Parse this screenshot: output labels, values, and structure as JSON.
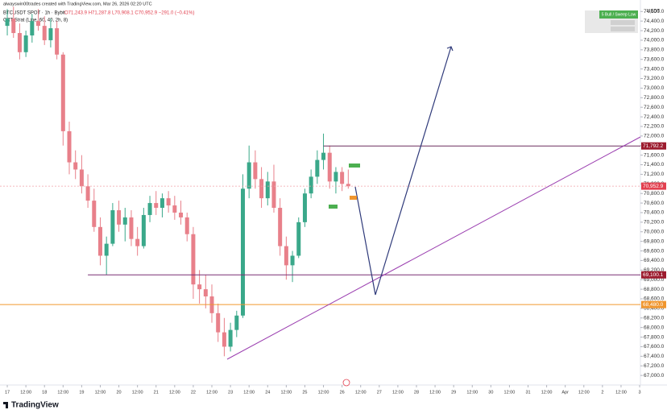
{
  "header": {
    "credit": "alwayswin00trades created with TradingView.com, Mar 26, 2026 02:20 UTC",
    "symbol": "BTCUSDT SPOT · 1h · Bybit",
    "ohlc": "O71,243.9 H71,287.8 L70,908.1 C70,952.9 −291.0 (−0.41%)",
    "indicator": "CRT Strat (Line, 60, 40, 2h, 8)"
  },
  "panel": {
    "title": "5 Bull / Sweep Low"
  },
  "footer": {
    "brand": "TradingView"
  },
  "chart_data": {
    "type": "candlestick",
    "y_unit": "USDT",
    "x": [
      0,
      4,
      8,
      12,
      16,
      20,
      24,
      28,
      32,
      36,
      40,
      44,
      48,
      52,
      56,
      60,
      64,
      68,
      72,
      76,
      80,
      84,
      88,
      92,
      96,
      100,
      104,
      108,
      112,
      116,
      120,
      124,
      128,
      132,
      136,
      140,
      144,
      148,
      152,
      156,
      160,
      164,
      168,
      172,
      176,
      180,
      184,
      188,
      192,
      196,
      200,
      204,
      208,
      212,
      216,
      220
    ],
    "open": [
      74300,
      74450,
      74150,
      73750,
      74100,
      74400,
      74300,
      74000,
      74250,
      73700,
      72100,
      71450,
      71300,
      70950,
      70650,
      70100,
      69500,
      69750,
      70450,
      70150,
      70300,
      69850,
      69700,
      70350,
      70600,
      70500,
      70700,
      70550,
      70400,
      70300,
      69950,
      68900,
      68800,
      68650,
      68300,
      67900,
      67600,
      67950,
      68250,
      70900,
      71450,
      71100,
      70700,
      71050,
      70500,
      69700,
      69300,
      69500,
      70200,
      70800,
      71150,
      71500,
      71650,
      71050,
      71250,
      71000
    ],
    "high": [
      74650,
      74700,
      74350,
      74200,
      74550,
      74650,
      74500,
      74450,
      74400,
      73750,
      72300,
      71700,
      71600,
      71200,
      70900,
      70300,
      69900,
      70600,
      70650,
      70500,
      70450,
      70100,
      70500,
      70750,
      70850,
      70800,
      70850,
      70750,
      70650,
      70400,
      70100,
      69200,
      69100,
      68900,
      68500,
      68200,
      68100,
      68350,
      71200,
      71800,
      71700,
      71350,
      71250,
      71400,
      70700,
      69900,
      69600,
      70300,
      70900,
      71300,
      71700,
      72050,
      71800,
      71350,
      71350,
      71300
    ],
    "low": [
      74100,
      74050,
      73600,
      73650,
      73950,
      74200,
      73900,
      73850,
      73600,
      71800,
      71200,
      71100,
      70800,
      70500,
      70000,
      69300,
      69100,
      69700,
      70000,
      69800,
      69700,
      69500,
      69650,
      70200,
      70350,
      70300,
      70400,
      70250,
      70150,
      69800,
      68600,
      68500,
      68400,
      68100,
      67700,
      67400,
      67500,
      67800,
      68200,
      70700,
      70900,
      70500,
      70550,
      70400,
      69500,
      69000,
      68950,
      69450,
      70100,
      70700,
      71000,
      71300,
      70900,
      70800,
      70850,
      70900
    ],
    "close": [
      74450,
      74150,
      73750,
      74100,
      74400,
      74300,
      74000,
      74250,
      73700,
      72100,
      71450,
      71300,
      70950,
      70650,
      70100,
      69500,
      69750,
      70450,
      70150,
      70300,
      69850,
      69700,
      70350,
      70600,
      70500,
      70700,
      70550,
      70400,
      70300,
      69950,
      68900,
      68800,
      68650,
      68300,
      67900,
      67600,
      67950,
      68250,
      70900,
      71450,
      71100,
      70700,
      71050,
      70500,
      69700,
      69300,
      69500,
      70200,
      70800,
      71150,
      71500,
      71650,
      71050,
      71250,
      71000,
      70950
    ],
    "up_color": "#3aa88a",
    "down_color": "#e8808a",
    "xlim": [
      -4.7,
      408.5
    ],
    "xticks": [
      {
        "value": 0,
        "label": "17"
      },
      {
        "value": 12,
        "label": "12:00"
      },
      {
        "value": 24,
        "label": "18"
      },
      {
        "value": 36,
        "label": "12:00"
      },
      {
        "value": 48,
        "label": "19"
      },
      {
        "value": 60,
        "label": "12:00"
      },
      {
        "value": 72,
        "label": "20"
      },
      {
        "value": 84,
        "label": "12:00"
      },
      {
        "value": 96,
        "label": "21"
      },
      {
        "value": 108,
        "label": "12:00"
      },
      {
        "value": 120,
        "label": "22"
      },
      {
        "value": 132,
        "label": "12:00"
      },
      {
        "value": 144,
        "label": "23"
      },
      {
        "value": 156,
        "label": "12:00"
      },
      {
        "value": 168,
        "label": "24"
      },
      {
        "value": 180,
        "label": "12:00"
      },
      {
        "value": 192,
        "label": "25"
      },
      {
        "value": 204,
        "label": "12:00"
      },
      {
        "value": 216,
        "label": "26"
      },
      {
        "value": 228,
        "label": "12:00"
      },
      {
        "value": 240,
        "label": "27"
      },
      {
        "value": 252,
        "label": "12:00"
      },
      {
        "value": 264,
        "label": "28"
      },
      {
        "value": 276,
        "label": "12:00"
      },
      {
        "value": 288,
        "label": "29"
      },
      {
        "value": 300,
        "label": "12:00"
      },
      {
        "value": 312,
        "label": "30"
      },
      {
        "value": 324,
        "label": "12:00"
      },
      {
        "value": 336,
        "label": "31"
      },
      {
        "value": 348,
        "label": "12:00"
      },
      {
        "value": 360,
        "label": "Apr"
      },
      {
        "value": 372,
        "label": "12:00"
      },
      {
        "value": 384,
        "label": "2"
      },
      {
        "value": 396,
        "label": "12:00"
      },
      {
        "value": 408,
        "label": "3"
      }
    ],
    "ylim": [
      66800,
      74840
    ],
    "yticks": [
      {
        "value": 74600,
        "label": "74,600.0"
      },
      {
        "value": 74400,
        "label": "74,400.0"
      },
      {
        "value": 74200,
        "label": "74,200.0"
      },
      {
        "value": 74000,
        "label": "74,000.0"
      },
      {
        "value": 73800,
        "label": "73,800.0"
      },
      {
        "value": 73600,
        "label": "73,600.0"
      },
      {
        "value": 73400,
        "label": "73,400.0"
      },
      {
        "value": 73200,
        "label": "73,200.0"
      },
      {
        "value": 73000,
        "label": "73,000.0"
      },
      {
        "value": 72800,
        "label": "72,800.0"
      },
      {
        "value": 72600,
        "label": "72,600.0"
      },
      {
        "value": 72400,
        "label": "72,400.0"
      },
      {
        "value": 72200,
        "label": "72,200.0"
      },
      {
        "value": 72000,
        "label": "72,000.0"
      },
      {
        "value": 71800,
        "label": "71,800.0"
      },
      {
        "value": 71600,
        "label": "71,600.0"
      },
      {
        "value": 71400,
        "label": "71,400.0"
      },
      {
        "value": 71200,
        "label": "71,200.0"
      },
      {
        "value": 71000,
        "label": "71,000.0"
      },
      {
        "value": 70800,
        "label": "70,800.0"
      },
      {
        "value": 70600,
        "label": "70,600.0"
      },
      {
        "value": 70400,
        "label": "70,400.0"
      },
      {
        "value": 70200,
        "label": "70,200.0"
      },
      {
        "value": 70000,
        "label": "70,000.0"
      },
      {
        "value": 69800,
        "label": "69,800.0"
      },
      {
        "value": 69600,
        "label": "69,600.0"
      },
      {
        "value": 69400,
        "label": "69,400.0"
      },
      {
        "value": 69200,
        "label": "69,200.0"
      },
      {
        "value": 69000,
        "label": "69,000.0"
      },
      {
        "value": 68800,
        "label": "68,800.0"
      },
      {
        "value": 68600,
        "label": "68,600.0"
      },
      {
        "value": 68400,
        "label": "68,400.0"
      },
      {
        "value": 68200,
        "label": "68,200.0"
      },
      {
        "value": 68000,
        "label": "68,000.0"
      },
      {
        "value": 67800,
        "label": "67,800.0"
      },
      {
        "value": 67600,
        "label": "67,600.0"
      },
      {
        "value": 67400,
        "label": "67,400.0"
      },
      {
        "value": 67200,
        "label": "67,200.0"
      },
      {
        "value": 67000,
        "label": "67,000.0"
      }
    ],
    "grid": false,
    "levels": [
      {
        "value": 71792.2,
        "label": "71,792.2",
        "color": "#6b2f5f",
        "label_color": "#9c1b2e",
        "dashed": false,
        "from": 204
      },
      {
        "value": 70952.9,
        "label": "70,952.9",
        "color": "#f0a0a8",
        "label_color": "#e2404f",
        "dashed": true,
        "from": -4.7
      },
      {
        "value": 69100.1,
        "label": "69,100.1",
        "color": "#7a2e73",
        "label_color": "#9c1b2e",
        "dashed": false,
        "from": 52
      },
      {
        "value": 68480.0,
        "label": "68,480.0",
        "color": "#f0962e",
        "label_color": "#f0962e",
        "dashed": false,
        "from": -4.7
      }
    ]
  }
}
